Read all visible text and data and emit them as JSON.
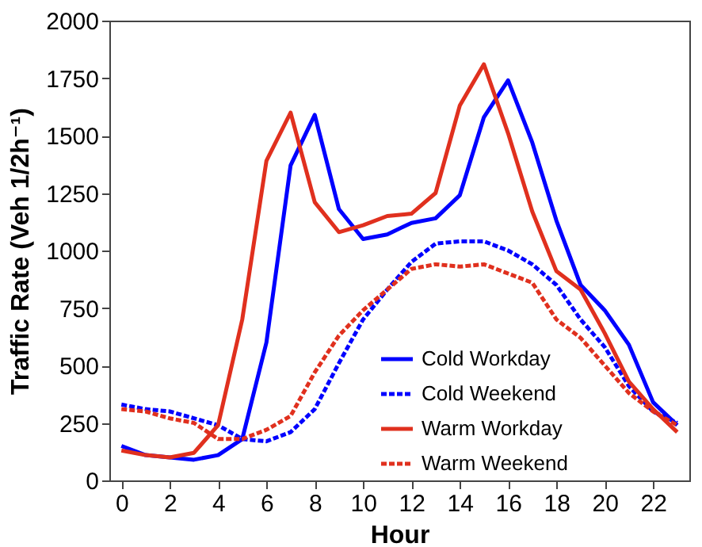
{
  "chart_data": {
    "type": "line",
    "xlabel": "Hour",
    "ylabel": "Traffic Rate (Veh 1/2h⁻¹)",
    "x": [
      0,
      1,
      2,
      3,
      4,
      5,
      6,
      7,
      8,
      9,
      10,
      11,
      12,
      13,
      14,
      15,
      16,
      17,
      18,
      19,
      20,
      21,
      22,
      23
    ],
    "xlim": [
      -0.5,
      23.5
    ],
    "xticks": [
      0,
      2,
      4,
      6,
      8,
      10,
      12,
      14,
      16,
      18,
      20,
      22
    ],
    "ylim": [
      0,
      2000
    ],
    "yticks": [
      0,
      250,
      500,
      750,
      1000,
      1250,
      1500,
      1750,
      2000
    ],
    "grid": false,
    "legend": "bottom right",
    "marker": "none",
    "series": [
      {
        "name": "Cold Workday",
        "color": "#0000ff",
        "line_style": "solid",
        "values": [
          150,
          110,
          100,
          90,
          110,
          180,
          600,
          1370,
          1590,
          1180,
          1050,
          1070,
          1120,
          1140,
          1240,
          1580,
          1740,
          1470,
          1130,
          850,
          740,
          590,
          340,
          240
        ]
      },
      {
        "name": "Cold Weekend",
        "color": "#0000ff",
        "line_style": "dotted",
        "values": [
          330,
          310,
          300,
          270,
          240,
          180,
          170,
          210,
          310,
          510,
          700,
          830,
          950,
          1030,
          1040,
          1040,
          1000,
          940,
          850,
          700,
          580,
          410,
          300,
          250
        ]
      },
      {
        "name": "Warm Workday",
        "color": "#e0301e",
        "line_style": "solid",
        "values": [
          130,
          110,
          100,
          120,
          240,
          700,
          1390,
          1600,
          1210,
          1080,
          1110,
          1150,
          1160,
          1250,
          1630,
          1810,
          1510,
          1170,
          910,
          830,
          640,
          430,
          310,
          210
        ]
      },
      {
        "name": "Warm Weekend",
        "color": "#e0301e",
        "line_style": "dotted",
        "values": [
          310,
          300,
          270,
          250,
          180,
          180,
          220,
          280,
          470,
          630,
          740,
          830,
          920,
          940,
          930,
          940,
          900,
          860,
          700,
          620,
          500,
          380,
          300,
          240
        ]
      }
    ]
  }
}
